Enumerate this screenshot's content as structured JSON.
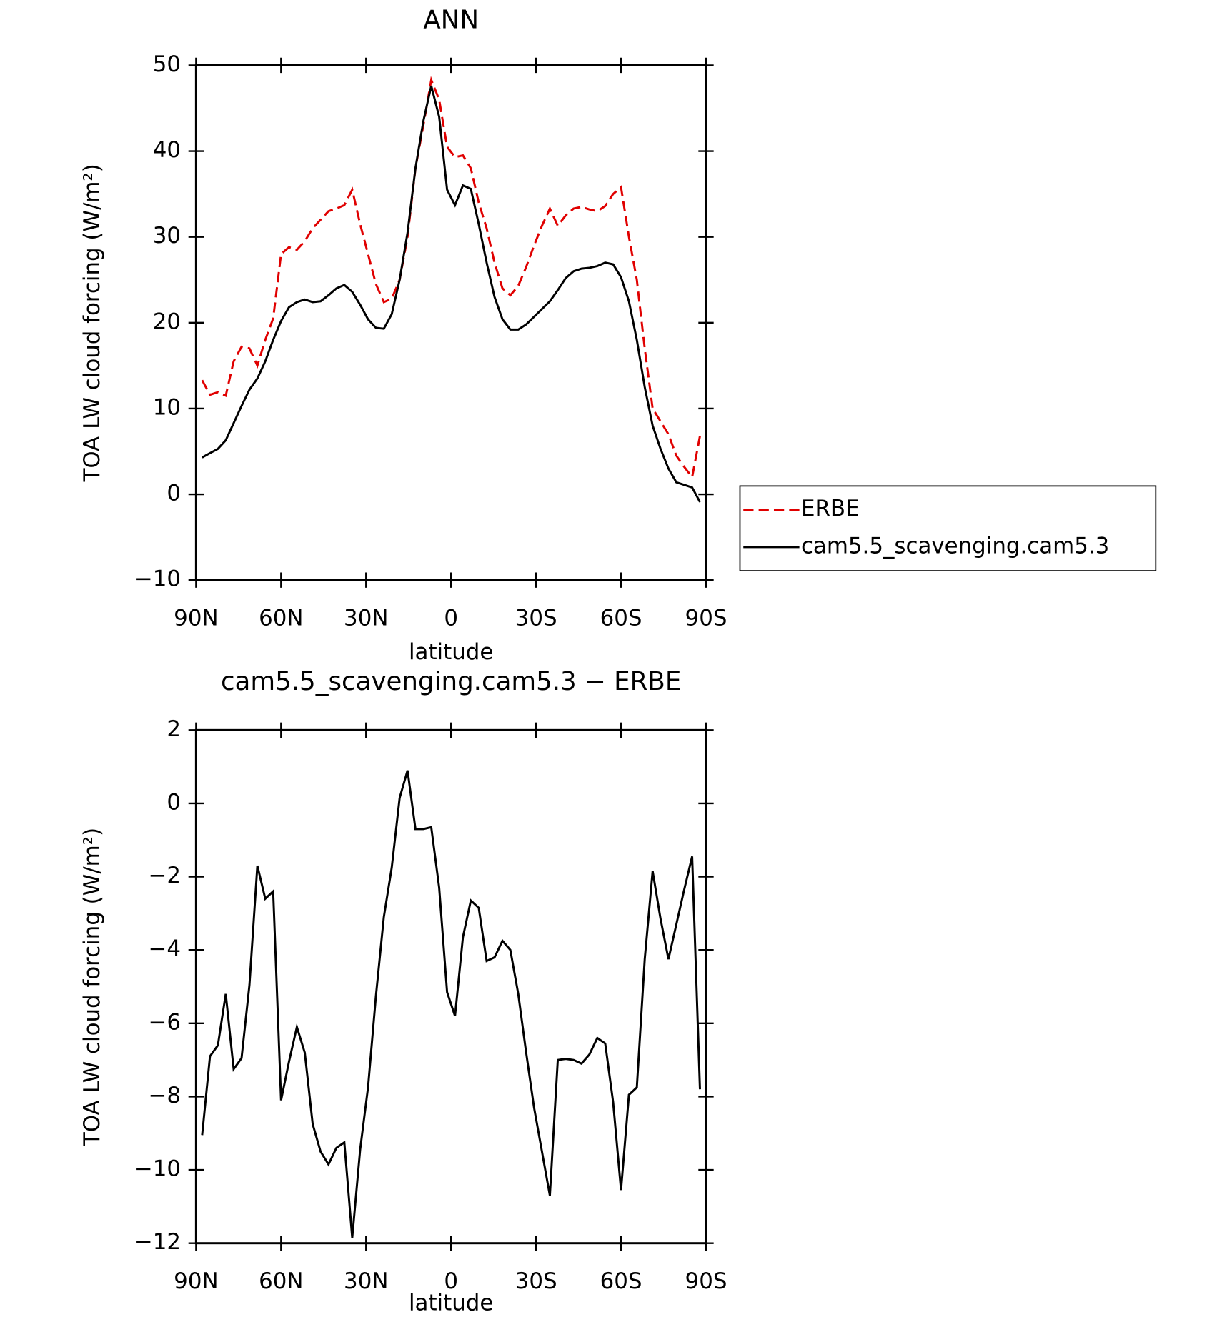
{
  "chart_data": [
    {
      "type": "line",
      "title": "ANN",
      "ylabel": "TOA LW cloud forcing (W/m²)",
      "xlabel": "latitude",
      "x": [
        87.86,
        85.1,
        82.31,
        79.53,
        76.74,
        73.95,
        71.16,
        68.37,
        65.58,
        62.79,
        60.0,
        57.21,
        54.42,
        51.63,
        48.84,
        46.05,
        43.26,
        40.47,
        37.67,
        34.88,
        32.09,
        29.3,
        26.51,
        23.72,
        20.93,
        18.14,
        15.35,
        12.56,
        9.77,
        6.98,
        4.19,
        1.4,
        -1.4,
        -4.19,
        -6.98,
        -9.77,
        -12.56,
        -15.35,
        -18.14,
        -20.93,
        -23.72,
        -26.51,
        -29.3,
        -32.09,
        -34.88,
        -37.67,
        -40.47,
        -43.26,
        -46.05,
        -48.84,
        -51.63,
        -54.42,
        -57.21,
        -60.0,
        -62.79,
        -65.58,
        -68.37,
        -71.16,
        -73.95,
        -76.74,
        -79.53,
        -82.31,
        -85.1,
        -87.86
      ],
      "xlim": [
        90,
        -90
      ],
      "xticks": [
        {
          "value": 90,
          "label": "90N"
        },
        {
          "value": 60,
          "label": "60N"
        },
        {
          "value": 30,
          "label": "30N"
        },
        0,
        {
          "value": -30,
          "label": "30S"
        },
        {
          "value": -60,
          "label": "60S"
        },
        {
          "value": -90,
          "label": "90S"
        }
      ],
      "ylim": [
        -10,
        50
      ],
      "yticks": [
        {
          "value": -10,
          "label": "−10"
        },
        0,
        10,
        20,
        30,
        40,
        50
      ],
      "legend": "right",
      "series": [
        {
          "name": "ERBE",
          "color": "#e00000",
          "dash": "dashed",
          "values": [
            13.3,
            11.6,
            11.9,
            11.5,
            15.5,
            17.2,
            17,
            15,
            18,
            20.5,
            28,
            28.8,
            28.5,
            29.5,
            31,
            32,
            33,
            33.3,
            33.7,
            35.5,
            31.5,
            28,
            24.5,
            22.4,
            22.8,
            25,
            30,
            38,
            43,
            48.3,
            46,
            40.5,
            39.3,
            39.5,
            38,
            34,
            31,
            27,
            24,
            23.2,
            24.3,
            26.5,
            29,
            31.3,
            33.3,
            31.3,
            32.5,
            33.3,
            33.5,
            33.2,
            33,
            33.6,
            35,
            35.8,
            30,
            25,
            17,
            10,
            8.5,
            7,
            4.5,
            3.2,
            2,
            6.8
          ]
        },
        {
          "name": "cam5.5_scavenging.cam5.3",
          "color": "#000000",
          "dash": "solid",
          "values": [
            4.3,
            4.8,
            5.3,
            6.3,
            8.3,
            10.3,
            12.2,
            13.5,
            15.5,
            18,
            20.2,
            21.8,
            22.4,
            22.7,
            22.4,
            22.5,
            23.2,
            24,
            24.4,
            23.6,
            22.1,
            20.4,
            19.4,
            19.3,
            21,
            25,
            30.5,
            38,
            43.5,
            47.6,
            44,
            35.5,
            33.7,
            36,
            35.6,
            31.5,
            27,
            23,
            20.4,
            19.2,
            19.2,
            19.8,
            20.7,
            21.6,
            22.5,
            23.8,
            25.2,
            26,
            26.3,
            26.4,
            26.6,
            27,
            26.8,
            25.3,
            22.5,
            18,
            12.5,
            8,
            5.3,
            3,
            1.4,
            1.1,
            0.8,
            -0.9
          ]
        }
      ]
    },
    {
      "type": "line",
      "title": "cam5.5_scavenging.cam5.3 − ERBE",
      "ylabel": "TOA LW cloud forcing (W/m²)",
      "xlabel": "latitude",
      "x": [
        87.86,
        85.1,
        82.31,
        79.53,
        76.74,
        73.95,
        71.16,
        68.37,
        65.58,
        62.79,
        60.0,
        57.21,
        54.42,
        51.63,
        48.84,
        46.05,
        43.26,
        40.47,
        37.67,
        34.88,
        32.09,
        29.3,
        26.51,
        23.72,
        20.93,
        18.14,
        15.35,
        12.56,
        9.77,
        6.98,
        4.19,
        1.4,
        -1.4,
        -4.19,
        -6.98,
        -9.77,
        -12.56,
        -15.35,
        -18.14,
        -20.93,
        -23.72,
        -26.51,
        -29.3,
        -32.09,
        -34.88,
        -37.67,
        -40.47,
        -43.26,
        -46.05,
        -48.84,
        -51.63,
        -54.42,
        -57.21,
        -60.0,
        -62.79,
        -65.58,
        -68.37,
        -71.16,
        -73.95,
        -76.74,
        -79.53,
        -82.31,
        -85.1,
        -87.86
      ],
      "xlim": [
        90,
        -90
      ],
      "xticks": [
        {
          "value": 90,
          "label": "90N"
        },
        {
          "value": 60,
          "label": "60N"
        },
        {
          "value": 30,
          "label": "30N"
        },
        0,
        {
          "value": -30,
          "label": "30S"
        },
        {
          "value": -60,
          "label": "60S"
        },
        {
          "value": -90,
          "label": "90S"
        }
      ],
      "ylim": [
        -12,
        2
      ],
      "yticks": [
        {
          "value": -12,
          "label": "−12"
        },
        {
          "value": -10,
          "label": "−10"
        },
        {
          "value": -8,
          "label": "−8"
        },
        {
          "value": -6,
          "label": "−6"
        },
        {
          "value": -4,
          "label": "−4"
        },
        {
          "value": -2,
          "label": "−2"
        },
        0,
        2
      ],
      "series": [
        {
          "color": "#000000",
          "dash": "solid",
          "values": [
            -9.05,
            -6.9,
            -6.6,
            -5.2,
            -7.25,
            -6.95,
            -4.95,
            -1.7,
            -2.6,
            -2.4,
            -8.1,
            -7.05,
            -6.1,
            -6.8,
            -8.75,
            -9.5,
            -9.85,
            -9.4,
            -9.25,
            -11.85,
            -9.45,
            -7.75,
            -5.25,
            -3.1,
            -1.75,
            0.15,
            0.9,
            -0.7,
            -0.7,
            -0.65,
            -2.3,
            -5.15,
            -5.8,
            -3.65,
            -2.65,
            -2.85,
            -4.3,
            -4.2,
            -3.75,
            -4.0,
            -5.2,
            -6.8,
            -8.3,
            -9.5,
            -10.7,
            -7.0,
            -6.97,
            -7.0,
            -7.1,
            -6.85,
            -6.4,
            -6.55,
            -8.15,
            -10.55,
            -7.95,
            -7.75,
            -4.25,
            -1.85,
            -3.15,
            -4.25,
            -3.3,
            -2.35,
            -1.45,
            -7.8
          ]
        }
      ]
    }
  ]
}
